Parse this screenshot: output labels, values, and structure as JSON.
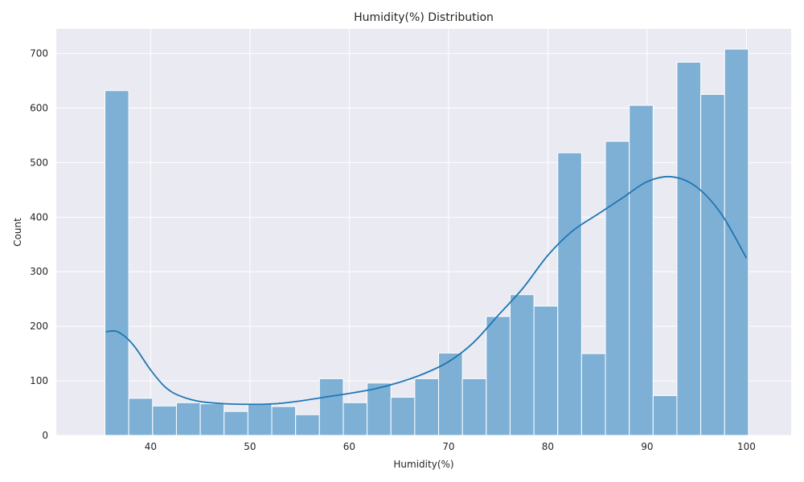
{
  "chart_data": {
    "type": "bar",
    "title": "Humidity(%) Distribution",
    "xlabel": "Humidity(%)",
    "ylabel": "Count",
    "xlim": [
      30.5,
      104.5
    ],
    "ylim": [
      0,
      745
    ],
    "x_ticks": [
      40,
      50,
      60,
      70,
      80,
      90,
      100
    ],
    "y_ticks": [
      0,
      100,
      200,
      300,
      400,
      500,
      600,
      700
    ],
    "grid": true,
    "bar_color": "#7eb0d5",
    "bar_edge_color": "#ffffff",
    "kde_color": "#1f77b4",
    "background_color": "#eaeaf2",
    "bins": [
      {
        "x0": 35.4,
        "x1": 37.8,
        "count": 632
      },
      {
        "x0": 37.8,
        "x1": 40.2,
        "count": 68
      },
      {
        "x0": 40.2,
        "x1": 42.6,
        "count": 54
      },
      {
        "x0": 42.6,
        "x1": 45.0,
        "count": 60
      },
      {
        "x0": 45.0,
        "x1": 47.4,
        "count": 58
      },
      {
        "x0": 47.4,
        "x1": 49.8,
        "count": 44
      },
      {
        "x0": 49.8,
        "x1": 52.2,
        "count": 58
      },
      {
        "x0": 52.2,
        "x1": 54.6,
        "count": 53
      },
      {
        "x0": 54.6,
        "x1": 57.0,
        "count": 38
      },
      {
        "x0": 57.0,
        "x1": 59.4,
        "count": 104
      },
      {
        "x0": 59.4,
        "x1": 61.8,
        "count": 60
      },
      {
        "x0": 61.8,
        "x1": 64.2,
        "count": 96
      },
      {
        "x0": 64.2,
        "x1": 66.6,
        "count": 70
      },
      {
        "x0": 66.6,
        "x1": 69.0,
        "count": 104
      },
      {
        "x0": 69.0,
        "x1": 71.4,
        "count": 151
      },
      {
        "x0": 71.4,
        "x1": 73.8,
        "count": 104
      },
      {
        "x0": 73.8,
        "x1": 76.2,
        "count": 218
      },
      {
        "x0": 76.2,
        "x1": 78.6,
        "count": 258
      },
      {
        "x0": 78.6,
        "x1": 81.0,
        "count": 237
      },
      {
        "x0": 81.0,
        "x1": 83.4,
        "count": 518
      },
      {
        "x0": 83.4,
        "x1": 85.8,
        "count": 150
      },
      {
        "x0": 85.8,
        "x1": 88.2,
        "count": 539
      },
      {
        "x0": 88.2,
        "x1": 90.6,
        "count": 605
      },
      {
        "x0": 90.6,
        "x1": 93.0,
        "count": 73
      },
      {
        "x0": 93.0,
        "x1": 95.4,
        "count": 684
      },
      {
        "x0": 95.4,
        "x1": 97.8,
        "count": 625
      },
      {
        "x0": 97.8,
        "x1": 100.2,
        "count": 708
      }
    ],
    "kde": {
      "x": [
        35.5,
        36.5,
        37.5,
        38.5,
        40,
        41.5,
        43,
        45,
        47.5,
        50,
        52.5,
        55,
        57.5,
        60,
        62.5,
        65,
        67.5,
        70,
        72.5,
        75,
        77.5,
        80,
        82.5,
        85,
        87.5,
        90,
        92.5,
        95,
        97.5,
        100
      ],
      "y": [
        190,
        191,
        180,
        160,
        120,
        88,
        72,
        62,
        58,
        57,
        58,
        63,
        70,
        77,
        85,
        97,
        113,
        135,
        170,
        220,
        270,
        330,
        375,
        405,
        435,
        465,
        474,
        455,
        405,
        325
      ]
    }
  }
}
